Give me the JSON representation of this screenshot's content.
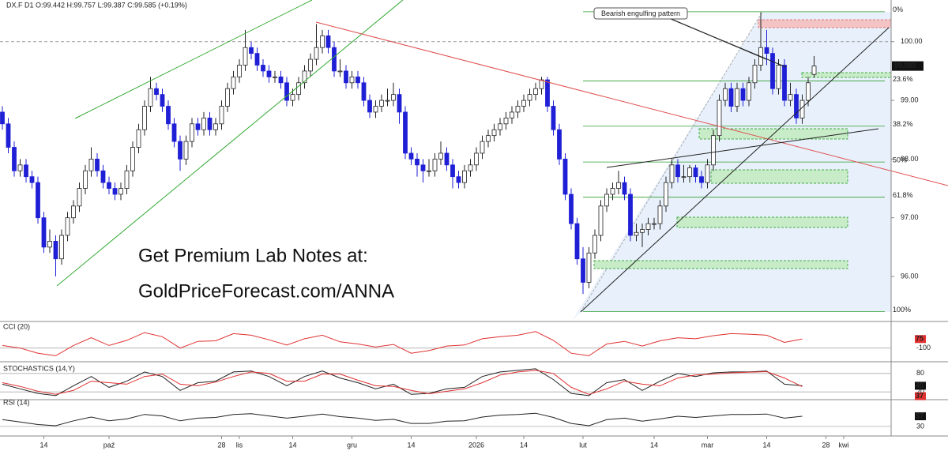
{
  "chart_data": [
    {
      "type": "candlestick",
      "header": "DX.F  D1  O:99.442  H:99.757  L:99.387  C:99.585  (+0.19%)",
      "annotation": "Bearish engulfing pattern",
      "promo": [
        "Get Premium Lab Notes at:",
        "GoldPriceForecast.com/ANNA"
      ],
      "up_color": "#ffffff",
      "down_color": "#1f1fd6",
      "xlim": [
        -0.4,
        150
      ],
      "ylim": [
        95.26,
        100.71
      ],
      "yticks": [
        {
          "value": 96,
          "label": "96.00"
        },
        {
          "value": 97,
          "label": "97.00"
        },
        {
          "value": 98,
          "label": "98.00"
        },
        {
          "value": 99,
          "label": "99.00"
        },
        {
          "value": 100,
          "label": "100.00"
        }
      ],
      "level_line": 100,
      "xticks": [
        {
          "value": 7,
          "label": "14"
        },
        {
          "value": 18,
          "label": "paź"
        },
        {
          "value": 37,
          "label": "28"
        },
        {
          "value": 40,
          "label": "lis"
        },
        {
          "value": 49,
          "label": "14"
        },
        {
          "value": 59,
          "label": "gru"
        },
        {
          "value": 69,
          "label": "14"
        },
        {
          "value": 80,
          "label": "2026"
        },
        {
          "value": 88,
          "label": "14"
        },
        {
          "value": 98,
          "label": "lut"
        },
        {
          "value": 110,
          "label": "14"
        },
        {
          "value": 119,
          "label": "mar"
        },
        {
          "value": 129,
          "label": "14"
        },
        {
          "value": 139,
          "label": "28"
        },
        {
          "value": 142,
          "label": "kwi"
        }
      ],
      "fib_color": "#2e9e2e",
      "fib_levels": [
        {
          "value": 100.51,
          "label": "0%"
        },
        {
          "value": 99.33,
          "label": "23.6%"
        },
        {
          "value": 98.56,
          "label": "38.2%"
        },
        {
          "value": 97.95,
          "label": "50%"
        },
        {
          "value": 97.35,
          "label": "61.8%"
        },
        {
          "value": 95.4,
          "label": "100%"
        }
      ],
      "ohlc": [
        [
          98.8,
          98.9,
          98.5,
          98.6
        ],
        [
          98.6,
          98.7,
          98.1,
          98.2
        ],
        [
          98.2,
          98.3,
          97.7,
          97.8
        ],
        [
          97.8,
          98.0,
          97.7,
          97.9
        ],
        [
          97.9,
          98.0,
          97.6,
          97.7
        ],
        [
          97.7,
          97.8,
          97.5,
          97.6
        ],
        [
          97.6,
          97.7,
          96.9,
          97.0
        ],
        [
          97.0,
          97.1,
          96.4,
          96.5
        ],
        [
          96.5,
          96.8,
          96.4,
          96.6
        ],
        [
          96.6,
          96.7,
          96.0,
          96.3
        ],
        [
          96.3,
          96.8,
          96.2,
          96.7
        ],
        [
          96.7,
          97.1,
          96.6,
          97.0
        ],
        [
          97.0,
          97.3,
          96.9,
          97.2
        ],
        [
          97.2,
          97.6,
          97.1,
          97.5
        ],
        [
          97.5,
          97.9,
          97.4,
          97.8
        ],
        [
          97.8,
          98.2,
          97.7,
          98.0
        ],
        [
          98.0,
          98.1,
          97.7,
          97.8
        ],
        [
          97.8,
          97.9,
          97.5,
          97.6
        ],
        [
          97.6,
          97.7,
          97.4,
          97.5
        ],
        [
          97.5,
          97.6,
          97.3,
          97.4
        ],
        [
          97.4,
          97.6,
          97.3,
          97.5
        ],
        [
          97.5,
          97.9,
          97.4,
          97.8
        ],
        [
          97.8,
          98.3,
          97.7,
          98.2
        ],
        [
          98.2,
          98.6,
          98.1,
          98.5
        ],
        [
          98.5,
          99.0,
          98.4,
          98.9
        ],
        [
          98.9,
          99.4,
          98.8,
          99.2
        ],
        [
          99.2,
          99.3,
          99.0,
          99.1
        ],
        [
          99.1,
          99.2,
          98.8,
          98.9
        ],
        [
          98.9,
          99.0,
          98.5,
          98.6
        ],
        [
          98.6,
          98.7,
          98.2,
          98.3
        ],
        [
          98.3,
          98.4,
          97.8,
          98.0
        ],
        [
          98.0,
          98.4,
          97.9,
          98.3
        ],
        [
          98.3,
          98.7,
          98.2,
          98.6
        ],
        [
          98.6,
          98.7,
          98.4,
          98.5
        ],
        [
          98.5,
          98.8,
          98.4,
          98.7
        ],
        [
          98.7,
          98.8,
          98.4,
          98.5
        ],
        [
          98.5,
          98.7,
          98.4,
          98.6
        ],
        [
          98.6,
          99.0,
          98.5,
          98.9
        ],
        [
          98.9,
          99.3,
          98.8,
          99.2
        ],
        [
          99.2,
          99.5,
          99.1,
          99.4
        ],
        [
          99.4,
          99.7,
          99.3,
          99.6
        ],
        [
          99.6,
          100.2,
          99.5,
          99.9
        ],
        [
          99.9,
          100.0,
          99.7,
          99.8
        ],
        [
          99.8,
          99.9,
          99.5,
          99.6
        ],
        [
          99.6,
          99.7,
          99.4,
          99.5
        ],
        [
          99.5,
          99.6,
          99.3,
          99.4
        ],
        [
          99.4,
          99.5,
          99.3,
          99.4
        ],
        [
          99.4,
          99.5,
          99.2,
          99.3
        ],
        [
          99.3,
          99.4,
          98.9,
          99.0
        ],
        [
          99.0,
          99.2,
          98.9,
          99.1
        ],
        [
          99.1,
          99.4,
          99.0,
          99.3
        ],
        [
          99.3,
          99.6,
          99.2,
          99.5
        ],
        [
          99.5,
          99.8,
          99.4,
          99.7
        ],
        [
          99.7,
          100.3,
          99.6,
          99.9
        ],
        [
          99.9,
          100.2,
          99.8,
          100.1
        ],
        [
          100.1,
          100.2,
          99.8,
          99.9
        ],
        [
          99.9,
          100.0,
          99.4,
          99.5
        ],
        [
          99.5,
          99.7,
          99.4,
          99.5
        ],
        [
          99.5,
          99.6,
          99.2,
          99.3
        ],
        [
          99.3,
          99.5,
          99.2,
          99.4
        ],
        [
          99.4,
          99.5,
          99.2,
          99.3
        ],
        [
          99.3,
          99.4,
          98.9,
          99.0
        ],
        [
          99.0,
          99.1,
          98.7,
          98.8
        ],
        [
          98.8,
          99.0,
          98.7,
          98.9
        ],
        [
          98.9,
          99.1,
          98.8,
          99.0
        ],
        [
          99.0,
          99.2,
          98.9,
          99.0
        ],
        [
          99.0,
          99.3,
          98.9,
          99.1
        ],
        [
          99.1,
          99.2,
          98.6,
          98.8
        ],
        [
          98.8,
          98.9,
          98.0,
          98.1
        ],
        [
          98.1,
          98.2,
          97.9,
          98.0
        ],
        [
          98.0,
          98.1,
          97.7,
          97.9
        ],
        [
          97.9,
          98.0,
          97.6,
          97.8
        ],
        [
          97.8,
          98.0,
          97.7,
          97.8
        ],
        [
          97.8,
          98.1,
          97.7,
          98.0
        ],
        [
          98.0,
          98.3,
          97.9,
          98.1
        ],
        [
          98.1,
          98.2,
          97.8,
          97.9
        ],
        [
          97.9,
          98.0,
          97.5,
          97.7
        ],
        [
          97.7,
          97.8,
          97.5,
          97.6
        ],
        [
          97.6,
          97.9,
          97.5,
          97.8
        ],
        [
          97.8,
          98.0,
          97.7,
          97.9
        ],
        [
          97.9,
          98.2,
          97.8,
          98.1
        ],
        [
          98.1,
          98.4,
          98.0,
          98.3
        ],
        [
          98.3,
          98.5,
          98.2,
          98.4
        ],
        [
          98.4,
          98.6,
          98.3,
          98.5
        ],
        [
          98.5,
          98.7,
          98.4,
          98.6
        ],
        [
          98.6,
          98.8,
          98.5,
          98.7
        ],
        [
          98.7,
          98.9,
          98.6,
          98.8
        ],
        [
          98.8,
          99.0,
          98.7,
          98.9
        ],
        [
          98.9,
          99.1,
          98.8,
          99.0
        ],
        [
          99.0,
          99.2,
          98.9,
          99.1
        ],
        [
          99.1,
          99.3,
          99.0,
          99.2
        ],
        [
          99.2,
          99.4,
          99.1,
          99.35
        ],
        [
          99.35,
          99.4,
          98.8,
          98.9
        ],
        [
          98.9,
          99.0,
          98.4,
          98.5
        ],
        [
          98.5,
          98.6,
          97.9,
          98.0
        ],
        [
          98.0,
          98.1,
          97.3,
          97.4
        ],
        [
          97.4,
          97.5,
          96.8,
          96.9
        ],
        [
          96.9,
          97.0,
          96.2,
          96.3
        ],
        [
          96.3,
          96.5,
          95.7,
          95.9
        ],
        [
          95.9,
          96.5,
          95.8,
          96.4
        ],
        [
          96.4,
          96.8,
          96.3,
          96.7
        ],
        [
          96.7,
          97.3,
          96.6,
          97.2
        ],
        [
          97.2,
          97.5,
          97.1,
          97.4
        ],
        [
          97.4,
          97.6,
          97.3,
          97.5
        ],
        [
          97.5,
          97.8,
          97.4,
          97.6
        ],
        [
          97.6,
          97.7,
          97.3,
          97.4
        ],
        [
          97.4,
          97.5,
          96.6,
          96.7
        ],
        [
          96.7,
          96.9,
          96.6,
          96.75
        ],
        [
          96.75,
          96.9,
          96.5,
          96.8
        ],
        [
          96.8,
          97.0,
          96.7,
          96.9
        ],
        [
          96.9,
          97.0,
          96.8,
          96.9
        ],
        [
          96.9,
          97.3,
          96.8,
          97.2
        ],
        [
          97.2,
          97.7,
          97.1,
          97.6
        ],
        [
          97.6,
          98.0,
          97.5,
          97.9
        ],
        [
          97.9,
          98.0,
          97.6,
          97.7
        ],
        [
          97.7,
          97.9,
          97.6,
          97.7
        ],
        [
          97.7,
          97.9,
          97.6,
          97.85
        ],
        [
          97.85,
          97.9,
          97.6,
          97.7
        ],
        [
          97.7,
          97.8,
          97.5,
          97.6
        ],
        [
          97.6,
          98.0,
          97.5,
          97.9
        ],
        [
          97.9,
          98.5,
          97.8,
          98.4
        ],
        [
          98.4,
          99.1,
          98.3,
          99.0
        ],
        [
          99.0,
          99.3,
          98.9,
          99.2
        ],
        [
          99.2,
          99.3,
          98.8,
          98.9
        ],
        [
          98.9,
          99.3,
          98.8,
          99.2
        ],
        [
          99.2,
          99.3,
          98.9,
          99.0
        ],
        [
          99.0,
          99.4,
          98.9,
          99.3
        ],
        [
          99.3,
          99.7,
          99.2,
          99.6
        ],
        [
          99.6,
          100.5,
          99.5,
          99.9
        ],
        [
          99.9,
          100.2,
          99.6,
          99.8
        ],
        [
          99.8,
          99.9,
          99.1,
          99.2
        ],
        [
          99.2,
          99.7,
          99.1,
          99.6
        ],
        [
          99.6,
          99.7,
          98.9,
          99.0
        ],
        [
          99.0,
          99.3,
          98.9,
          99.1
        ],
        [
          99.1,
          99.2,
          98.6,
          98.7
        ],
        [
          98.7,
          99.1,
          98.6,
          99.0
        ],
        [
          99.0,
          99.4,
          98.9,
          99.3
        ],
        [
          99.442,
          99.757,
          99.387,
          99.585
        ]
      ]
    },
    {
      "type": "line",
      "title": "CCI (20)",
      "ylim": [
        -320,
        340
      ],
      "yticks": [
        -100
      ],
      "series": [
        {
          "color": "#e03030",
          "values": [
            -50,
            -100,
            -200,
            -250,
            -50,
            100,
            -50,
            50,
            200,
            120,
            -100,
            30,
            40,
            180,
            150,
            60,
            -40,
            80,
            150,
            20,
            -20,
            -80,
            -30,
            -200,
            -150,
            -60,
            -40,
            80,
            120,
            150,
            220,
            50,
            -200,
            -250,
            -20,
            30,
            -60,
            40,
            100,
            80,
            140,
            180,
            170,
            150,
            10,
            75
          ]
        }
      ]
    },
    {
      "type": "line",
      "title": "STOCHASTICS (14,Y)",
      "ylim": [
        0,
        100
      ],
      "yticks": [
        80,
        20
      ],
      "series": [
        {
          "color": "#222222",
          "values": [
            45,
            30,
            15,
            8,
            40,
            70,
            35,
            55,
            85,
            70,
            25,
            50,
            55,
            85,
            88,
            70,
            40,
            70,
            88,
            65,
            50,
            30,
            45,
            12,
            15,
            30,
            35,
            70,
            85,
            90,
            95,
            60,
            15,
            8,
            50,
            60,
            25,
            55,
            80,
            70,
            82,
            85,
            85,
            88,
            45,
            40
          ]
        },
        {
          "color": "#e03030",
          "values": [
            50,
            38,
            22,
            12,
            25,
            55,
            50,
            45,
            70,
            78,
            45,
            40,
            52,
            70,
            85,
            80,
            55,
            55,
            78,
            78,
            58,
            40,
            38,
            25,
            14,
            22,
            30,
            50,
            75,
            85,
            90,
            80,
            35,
            12,
            30,
            55,
            45,
            40,
            65,
            75,
            78,
            82,
            84,
            86,
            65,
            37
          ]
        }
      ]
    },
    {
      "type": "line",
      "title": "RSI (14)",
      "ylim": [
        13,
        97
      ],
      "yticks": [
        30
      ],
      "series": [
        {
          "color": "#222222",
          "values": [
            48,
            42,
            35,
            32,
            45,
            55,
            45,
            50,
            62,
            58,
            45,
            52,
            54,
            62,
            64,
            58,
            52,
            57,
            63,
            56,
            52,
            46,
            49,
            38,
            38,
            44,
            45,
            55,
            60,
            62,
            65,
            54,
            38,
            32,
            48,
            52,
            44,
            50,
            57,
            54,
            58,
            62,
            62,
            63,
            52,
            57
          ]
        }
      ]
    }
  ]
}
